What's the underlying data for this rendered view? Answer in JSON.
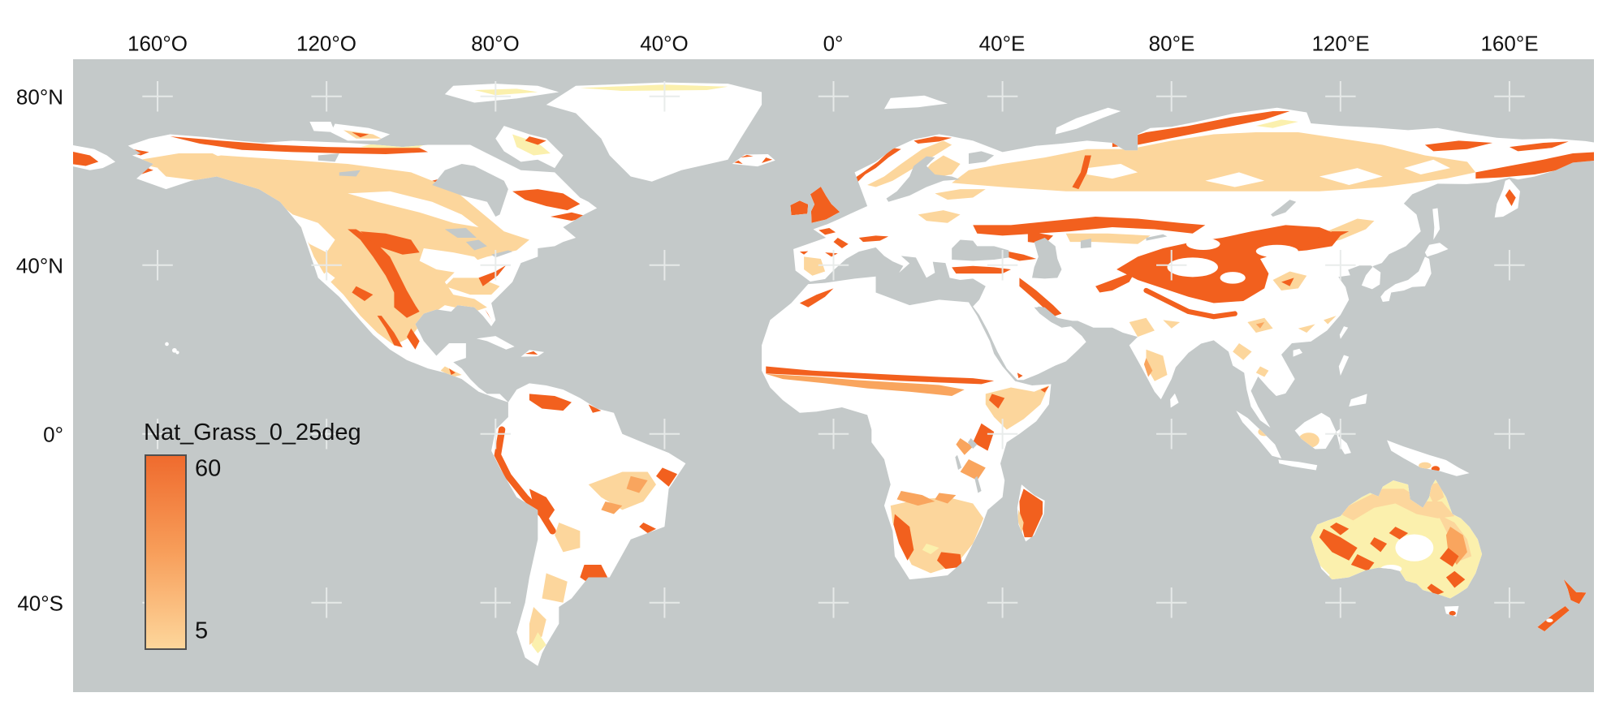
{
  "figure": {
    "type": "raster-world-map",
    "projection": "equirectangular",
    "legend": {
      "title": "Nat_Grass_0_25deg",
      "max_label": "60",
      "min_label": "5",
      "gradient_top_color": "#ef6b2e",
      "gradient_bottom_color": "#fdd69b",
      "border_color": "#4f4f4f"
    },
    "scale": {
      "min": 5,
      "max": 60
    },
    "axes": {
      "top_ticks": [
        {
          "lon": -160,
          "label": "160°O"
        },
        {
          "lon": -120,
          "label": "120°O"
        },
        {
          "lon": -80,
          "label": "80°O"
        },
        {
          "lon": -40,
          "label": "40°O"
        },
        {
          "lon": 0,
          "label": "0°"
        },
        {
          "lon": 40,
          "label": "40°E"
        },
        {
          "lon": 80,
          "label": "80°E"
        },
        {
          "lon": 120,
          "label": "120°E"
        },
        {
          "lon": 160,
          "label": "160°E"
        }
      ],
      "left_ticks": [
        {
          "lat": 80,
          "label": "80°N"
        },
        {
          "lat": 40,
          "label": "40°N"
        },
        {
          "lat": 0,
          "label": "0°"
        },
        {
          "lat": -40,
          "label": "40°S"
        }
      ]
    },
    "graticule": {
      "lons": [
        -160,
        -120,
        -80,
        -40,
        0,
        40,
        80,
        120,
        160
      ],
      "lats": [
        80,
        40,
        0,
        -40
      ],
      "cross_color": "#e8ebea"
    },
    "colors": {
      "ocean": "#c4c9c9",
      "land_no_data": "#ffffff",
      "value_lowest": "#fbf0ad",
      "value_low": "#fcd69c",
      "value_mid": "#f9a55e",
      "value_high": "#f2601e",
      "page_background": "#ffffff",
      "text": "#111111"
    }
  }
}
